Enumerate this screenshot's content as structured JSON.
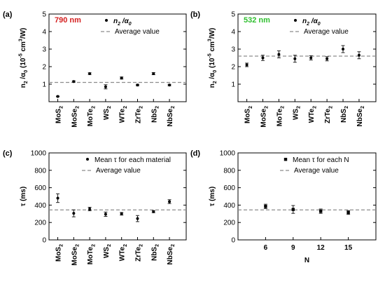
{
  "chart_data": [
    {
      "type": "scatter",
      "panel": "(a)",
      "annotation": "790 nm",
      "annotation_color": "#d42020",
      "ylabel": "n_2 /α_0 (10^-5 cm^3/W)",
      "ylim": [
        0,
        5
      ],
      "yticks": [
        1,
        2,
        3,
        4,
        5
      ],
      "categories": [
        "MoS2",
        "MoSe2",
        "MoTe2",
        "WS2",
        "WTe2",
        "ZrTe2",
        "NbS2",
        "NbSe2"
      ],
      "values": [
        0.3,
        1.15,
        1.6,
        0.85,
        1.35,
        0.95,
        1.6,
        0.95
      ],
      "errors": [
        0.02,
        0.04,
        0.05,
        0.12,
        0.06,
        0.04,
        0.06,
        0.04
      ],
      "average": 1.1,
      "legend": {
        "marker_label": "n_2 /α_0",
        "line_label": "Average value",
        "position": "top-right"
      }
    },
    {
      "type": "scatter",
      "panel": "(b)",
      "annotation": "532 nm",
      "annotation_color": "#2fbf2f",
      "ylabel": "n_2 /α_0 (10^-5 cm^3/W)",
      "ylim": [
        0,
        5
      ],
      "yticks": [
        1,
        2,
        3,
        4,
        5
      ],
      "categories": [
        "MoS2",
        "MoSe2",
        "MoTe2",
        "WS2",
        "WTe2",
        "ZrTe2",
        "NbS2",
        "NbSe2"
      ],
      "values": [
        2.1,
        2.5,
        2.7,
        2.45,
        2.5,
        2.45,
        3.0,
        2.65
      ],
      "errors": [
        0.1,
        0.15,
        0.2,
        0.2,
        0.12,
        0.12,
        0.2,
        0.2
      ],
      "average": 2.6,
      "legend": {
        "marker_label": "n_2 /α_0",
        "line_label": "Average value",
        "position": "top-right"
      }
    },
    {
      "type": "scatter",
      "panel": "(c)",
      "ylabel": "τ (ms)",
      "ylim": [
        0,
        1000
      ],
      "yticks": [
        0,
        200,
        400,
        600,
        800,
        1000
      ],
      "categories": [
        "MoS2",
        "MoSe2",
        "MoTe2",
        "WS2",
        "WTe2",
        "ZrTe2",
        "NbS2",
        "NbSe2"
      ],
      "values": [
        480,
        305,
        355,
        295,
        300,
        245,
        325,
        440
      ],
      "errors": [
        50,
        40,
        20,
        25,
        15,
        35,
        12,
        22
      ],
      "average": 345,
      "legend": {
        "marker_label": "Mean τ  for each material",
        "line_label": "Average value",
        "position": "top-right"
      }
    },
    {
      "type": "scatter",
      "panel": "(d)",
      "xlabel": "N",
      "ylabel": "τ (ms)",
      "ylim": [
        0,
        1000
      ],
      "yticks": [
        0,
        200,
        400,
        600,
        800,
        1000
      ],
      "categories": [
        "6",
        "9",
        "12",
        "15"
      ],
      "values": [
        385,
        350,
        330,
        315
      ],
      "errors": [
        25,
        45,
        25,
        22
      ],
      "average": 345,
      "legend": {
        "marker_label": "Mean τ  for each N",
        "line_label": "Average value",
        "position": "top-right"
      }
    }
  ]
}
